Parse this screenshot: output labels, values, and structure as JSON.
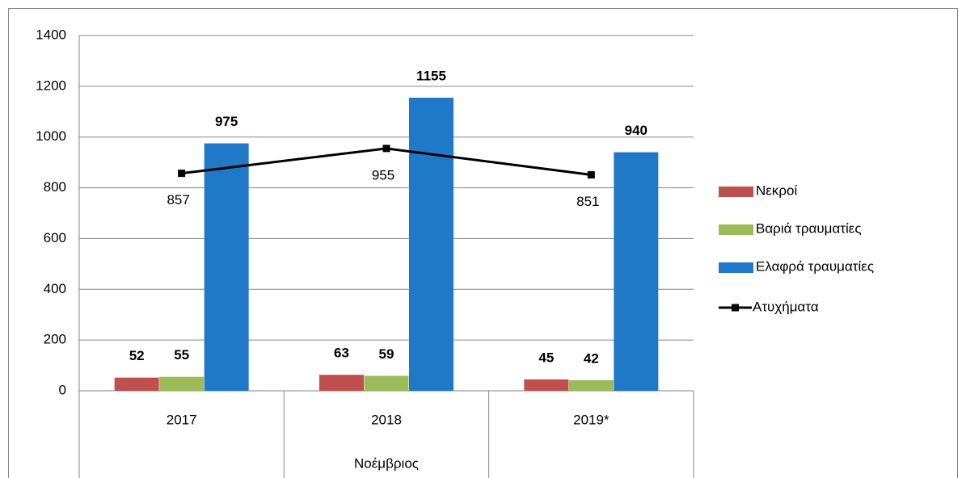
{
  "chart_data": {
    "type": "bar",
    "categories": [
      "2017",
      "2018",
      "2019*"
    ],
    "group_label": "Νοέμβριος",
    "series": [
      {
        "name": "Νεκροί",
        "color": "#c0504d",
        "values": [
          52,
          63,
          45
        ]
      },
      {
        "name": "Βαριά τραυματίες",
        "color": "#9bbb59",
        "values": [
          55,
          59,
          42
        ]
      },
      {
        "name": "Ελαφρά τραυματίες",
        "color": "#1f78c8",
        "values": [
          975,
          1155,
          940
        ]
      },
      {
        "name": "Ατυχήματα",
        "color": "#000000",
        "type": "line",
        "values": [
          857,
          955,
          851
        ]
      }
    ],
    "ylim": [
      0,
      1400
    ],
    "yticks": [
      0,
      200,
      400,
      600,
      800,
      1000,
      1200,
      1400
    ],
    "grid": true,
    "legend": "right"
  }
}
